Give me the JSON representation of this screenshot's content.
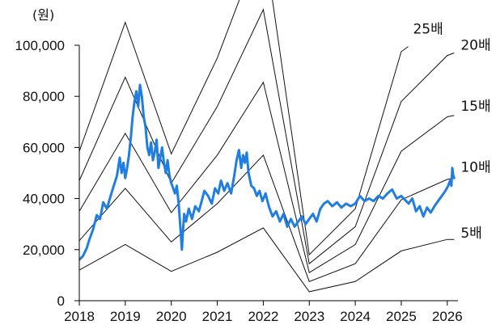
{
  "chart_data": {
    "type": "line",
    "unit_label": "(원)",
    "y_ticks": [
      0,
      20000,
      40000,
      60000,
      80000,
      100000
    ],
    "y_tick_labels": [
      "0",
      "20,000",
      "40,000",
      "60,000",
      "80,000",
      "100,000"
    ],
    "ylim": [
      0,
      100000
    ],
    "x_ticks": [
      2018,
      2019,
      2020,
      2021,
      2022,
      2023,
      2024,
      2025,
      2026
    ],
    "x_tick_labels": [
      "2018",
      "2019",
      "2020",
      "2021",
      "2022",
      "2023",
      "2024",
      "2025",
      "2026"
    ],
    "xlim": [
      2018.0,
      2026.25
    ],
    "grid": false,
    "legend": "none",
    "colors": {
      "price": "#1f7ee0",
      "bands": "#111111",
      "axis": "#000000"
    },
    "bands": [
      {
        "label": "5배",
        "multiple": 5,
        "x": [
          2018.0,
          2019.0,
          2020.0,
          2021.0,
          2022.0,
          2023.0,
          2024.0,
          2025.0,
          2026.0,
          2026.15
        ],
        "y": [
          12000,
          22000,
          11500,
          19000,
          28500,
          3500,
          7500,
          19500,
          24000,
          24000
        ]
      },
      {
        "label": "10배",
        "multiple": 10,
        "x": [
          2018.0,
          2019.0,
          2020.0,
          2021.0,
          2022.0,
          2023.0,
          2024.0,
          2025.0,
          2026.0,
          2026.15
        ],
        "y": [
          23500,
          44000,
          23000,
          38000,
          57000,
          7500,
          14500,
          39500,
          47500,
          48000
        ]
      },
      {
        "label": "15배",
        "multiple": 15,
        "x": [
          2018.0,
          2019.0,
          2020.0,
          2021.0,
          2022.0,
          2023.0,
          2024.0,
          2025.0,
          2026.0,
          2026.15
        ],
        "y": [
          35000,
          65500,
          34500,
          57000,
          85500,
          11000,
          22000,
          58500,
          72000,
          72500
        ]
      },
      {
        "label": "20배",
        "multiple": 20,
        "x": [
          2018.0,
          2019.0,
          2020.0,
          2021.0,
          2022.0,
          2023.0,
          2024.0,
          2025.0,
          2026.0,
          2026.15
        ],
        "y": [
          47000,
          87500,
          46000,
          76000,
          114000,
          14500,
          29000,
          78000,
          96000,
          97000
        ]
      },
      {
        "label": "25배",
        "multiple": 25,
        "x": [
          2018.0,
          2019.0,
          2020.0,
          2021.0,
          2022.0,
          2023.0,
          2024.0,
          2025.0,
          2025.15
        ],
        "y": [
          58500,
          109000,
          57500,
          95000,
          142500,
          18000,
          36000,
          97500,
          99500
        ]
      }
    ],
    "price": {
      "x": [
        2018.0,
        2018.08,
        2018.16,
        2018.22,
        2018.3,
        2018.38,
        2018.45,
        2018.52,
        2018.6,
        2018.68,
        2018.75,
        2018.82,
        2018.88,
        2018.92,
        2018.96,
        2019.0,
        2019.04,
        2019.08,
        2019.12,
        2019.16,
        2019.2,
        2019.24,
        2019.28,
        2019.32,
        2019.36,
        2019.4,
        2019.44,
        2019.48,
        2019.52,
        2019.56,
        2019.6,
        2019.64,
        2019.68,
        2019.72,
        2019.76,
        2019.8,
        2019.84,
        2019.88,
        2019.92,
        2019.96,
        2020.0,
        2020.04,
        2020.08,
        2020.12,
        2020.16,
        2020.2,
        2020.23,
        2020.25,
        2020.28,
        2020.32,
        2020.38,
        2020.45,
        2020.52,
        2020.6,
        2020.66,
        2020.72,
        2020.8,
        2020.88,
        2020.95,
        2021.02,
        2021.08,
        2021.15,
        2021.22,
        2021.3,
        2021.36,
        2021.42,
        2021.47,
        2021.52,
        2021.56,
        2021.6,
        2021.64,
        2021.68,
        2021.74,
        2021.8,
        2021.86,
        2021.92,
        2021.98,
        2022.05,
        2022.12,
        2022.2,
        2022.28,
        2022.36,
        2022.44,
        2022.52,
        2022.6,
        2022.68,
        2022.76,
        2022.84,
        2022.92,
        2023.0,
        2023.08,
        2023.16,
        2023.24,
        2023.32,
        2023.4,
        2023.5,
        2023.6,
        2023.7,
        2023.8,
        2023.9,
        2024.0,
        2024.1,
        2024.2,
        2024.3,
        2024.4,
        2024.5,
        2024.6,
        2024.7,
        2024.8,
        2024.9,
        2025.0,
        2025.08,
        2025.16,
        2025.24,
        2025.32,
        2025.4,
        2025.48,
        2025.56,
        2025.64,
        2025.72,
        2025.8,
        2025.88,
        2025.96,
        2026.02,
        2026.06,
        2026.09,
        2026.11,
        2026.13,
        2026.15
      ],
      "y": [
        16000,
        17500,
        20500,
        24000,
        28000,
        33500,
        32000,
        38500,
        36000,
        41000,
        45000,
        49000,
        56000,
        50000,
        54000,
        48000,
        52000,
        57000,
        64000,
        72000,
        78000,
        82000,
        76000,
        84500,
        80000,
        72000,
        68000,
        60000,
        57000,
        62000,
        55000,
        58000,
        63000,
        52000,
        56000,
        60000,
        54000,
        50000,
        55000,
        49000,
        46000,
        44000,
        42000,
        45000,
        38000,
        28000,
        20000,
        26000,
        34000,
        31000,
        36000,
        32000,
        37000,
        35000,
        39000,
        43000,
        41000,
        38000,
        44000,
        42000,
        47000,
        43000,
        46000,
        42000,
        48000,
        55000,
        59000,
        52000,
        57000,
        54000,
        58000,
        50000,
        45000,
        44000,
        41000,
        43000,
        39000,
        42000,
        37000,
        33000,
        35000,
        31000,
        34000,
        29000,
        32000,
        29000,
        31000,
        33000,
        30000,
        32000,
        34000,
        31000,
        36000,
        38000,
        39000,
        37000,
        38500,
        36500,
        38000,
        37000,
        38000,
        41000,
        39000,
        40000,
        39000,
        41000,
        40000,
        42000,
        43500,
        40000,
        41000,
        39500,
        38000,
        40000,
        35000,
        37000,
        33000,
        36500,
        34500,
        37000,
        39000,
        41000,
        43000,
        45000,
        47000,
        45000,
        52000,
        49000,
        48000
      ]
    }
  }
}
